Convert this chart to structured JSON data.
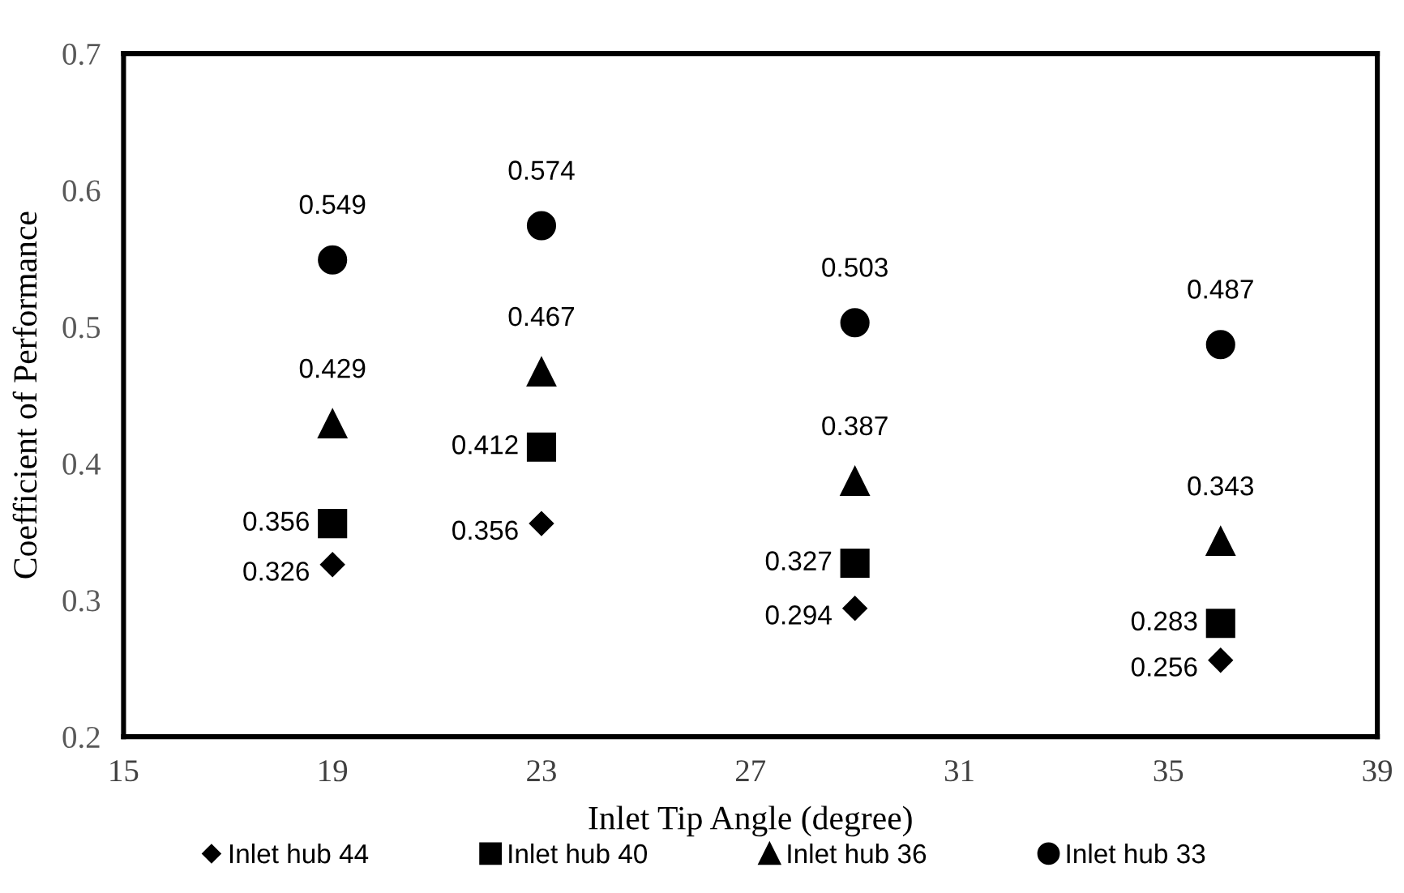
{
  "chart_data": {
    "type": "scatter",
    "xlabel": "Inlet Tip Angle (degree)",
    "ylabel": "Coefficient of Performance",
    "x": [
      19,
      23,
      29,
      36
    ],
    "series": [
      {
        "name": "Inlet hub 44",
        "color": "#000000",
        "marker": "diamond",
        "values": [
          0.326,
          0.356,
          0.294,
          0.256
        ]
      },
      {
        "name": "Inlet hub 40",
        "color": "#000000",
        "marker": "square",
        "values": [
          0.356,
          0.412,
          0.327,
          0.283
        ]
      },
      {
        "name": "Inlet hub 36",
        "color": "#000000",
        "marker": "triangle",
        "values": [
          0.429,
          0.467,
          0.387,
          0.343
        ]
      },
      {
        "name": "Inlet hub 33",
        "color": "#000000",
        "marker": "circle",
        "values": [
          0.549,
          0.574,
          0.503,
          0.487
        ]
      }
    ],
    "xlim": [
      15,
      39
    ],
    "xticks": [
      15,
      19,
      23,
      27,
      31,
      35,
      39
    ],
    "ylim": [
      0.2,
      0.7
    ],
    "yticks": [
      0.2,
      0.3,
      0.4,
      0.5,
      0.6,
      0.7
    ],
    "grid": false,
    "legend": "bottom",
    "data_labels": true
  }
}
